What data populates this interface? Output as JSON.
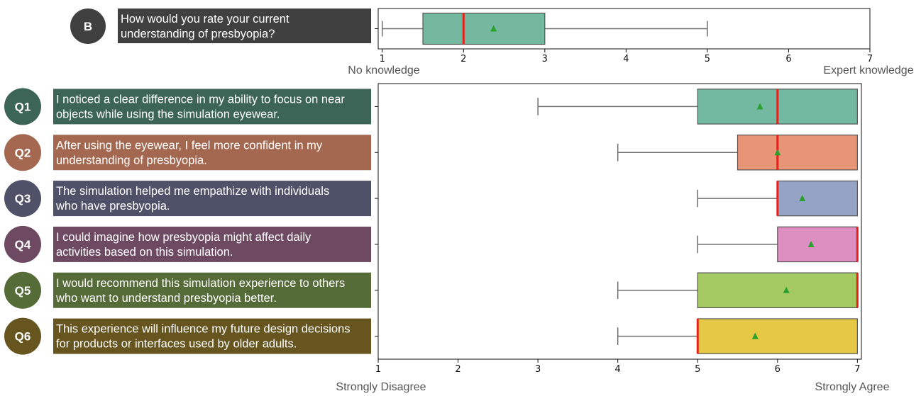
{
  "chart_data": [
    {
      "type": "boxplot",
      "orientation": "horizontal",
      "id": "B",
      "badge": "B",
      "question": "How would you rate your current understanding of presbyopia?",
      "question_lines": [
        "How would you rate your current",
        "understanding of presbyopia?"
      ],
      "xlim": [
        0.95,
        7.0
      ],
      "xticks": [
        1,
        2,
        3,
        4,
        5,
        6,
        7
      ],
      "xlabel_left": "No knowledge",
      "xlabel_right": "Expert knowledge",
      "badge_color": "#404040",
      "label_bg": "#404040",
      "boxes": [
        {
          "name": "B",
          "whisker_low": 1,
          "q1": 1.5,
          "median": 2,
          "q3": 3,
          "whisker_high": 5,
          "mean": 2.37,
          "color": "#74b8a0"
        }
      ]
    },
    {
      "type": "boxplot",
      "orientation": "horizontal",
      "id": "Q",
      "xlim": [
        1,
        7.05
      ],
      "xticks": [
        1,
        2,
        3,
        4,
        5,
        6,
        7
      ],
      "xlabel_left": "Strongly Disagree",
      "xlabel_right": "Strongly Agree",
      "boxes": [
        {
          "name": "Q1",
          "question": "I noticed a clear difference in my ability to focus on near objects while using the simulation eyewear.",
          "question_lines": [
            "I noticed a clear difference in my ability to focus on near",
            "objects while using the simulation eyewear."
          ],
          "whisker_low": 3,
          "q1": 5,
          "median": 6,
          "q3": 7,
          "whisker_high": 7,
          "mean": 5.78,
          "color": "#73b8a0",
          "badge_color": "#3c6457",
          "label_bg": "#3c6457"
        },
        {
          "name": "Q2",
          "question": "After using the eyewear, I feel more confident in my understanding of presbyopia.",
          "question_lines": [
            "After using the eyewear, I feel more confident in my",
            "understanding of presbyopia."
          ],
          "whisker_low": 4,
          "q1": 5.5,
          "median": 6,
          "q3": 7,
          "whisker_high": 7,
          "mean": 6.0,
          "color": "#e89577",
          "badge_color": "#a3684f",
          "label_bg": "#a3684f"
        },
        {
          "name": "Q3",
          "question": "The simulation helped me empathize with individuals who have presbyopia.",
          "question_lines": [
            "The simulation helped me empathize with individuals",
            "who have presbyopia."
          ],
          "whisker_low": 5,
          "q1": 6,
          "median": 6,
          "q3": 7,
          "whisker_high": 7,
          "mean": 6.31,
          "color": "#94a3c6",
          "badge_color": "#4e5168",
          "label_bg": "#4e5168"
        },
        {
          "name": "Q4",
          "question": "I could imagine how presbyopia might affect daily activities based on this simulation.",
          "question_lines": [
            "I could imagine how presbyopia might affect daily",
            "activities based on this simulation."
          ],
          "whisker_low": 5,
          "q1": 6,
          "median": 7,
          "q3": 7,
          "whisker_high": 7,
          "mean": 6.42,
          "color": "#de8fc2",
          "badge_color": "#6d4a62",
          "label_bg": "#6d4a62"
        },
        {
          "name": "Q5",
          "question": "I would recommend this simulation experience to others who want to understand presbyopia better.",
          "question_lines": [
            "I would recommend this simulation experience to others",
            "who want to understand presbyopia better."
          ],
          "whisker_low": 4,
          "q1": 5,
          "median": 7,
          "q3": 7,
          "whisker_high": 7,
          "mean": 6.11,
          "color": "#a5c963",
          "badge_color": "#556b38",
          "label_bg": "#556b38"
        },
        {
          "name": "Q6",
          "question": "This experience will influence my future design decisions for products or interfaces used by older adults.",
          "question_lines": [
            "This experience will influence my future design decisions",
            "for products or interfaces used by older adults."
          ],
          "whisker_low": 4,
          "q1": 5,
          "median": 5,
          "q3": 7,
          "whisker_high": 7,
          "mean": 5.72,
          "color": "#e5c945",
          "badge_color": "#675520",
          "label_bg": "#675520"
        }
      ]
    }
  ],
  "colors": {
    "median": "#e8201a",
    "mean": "#2ca02c",
    "whisker": "#6e6e6e",
    "box_edge": "#555555",
    "axis": "#111111"
  }
}
